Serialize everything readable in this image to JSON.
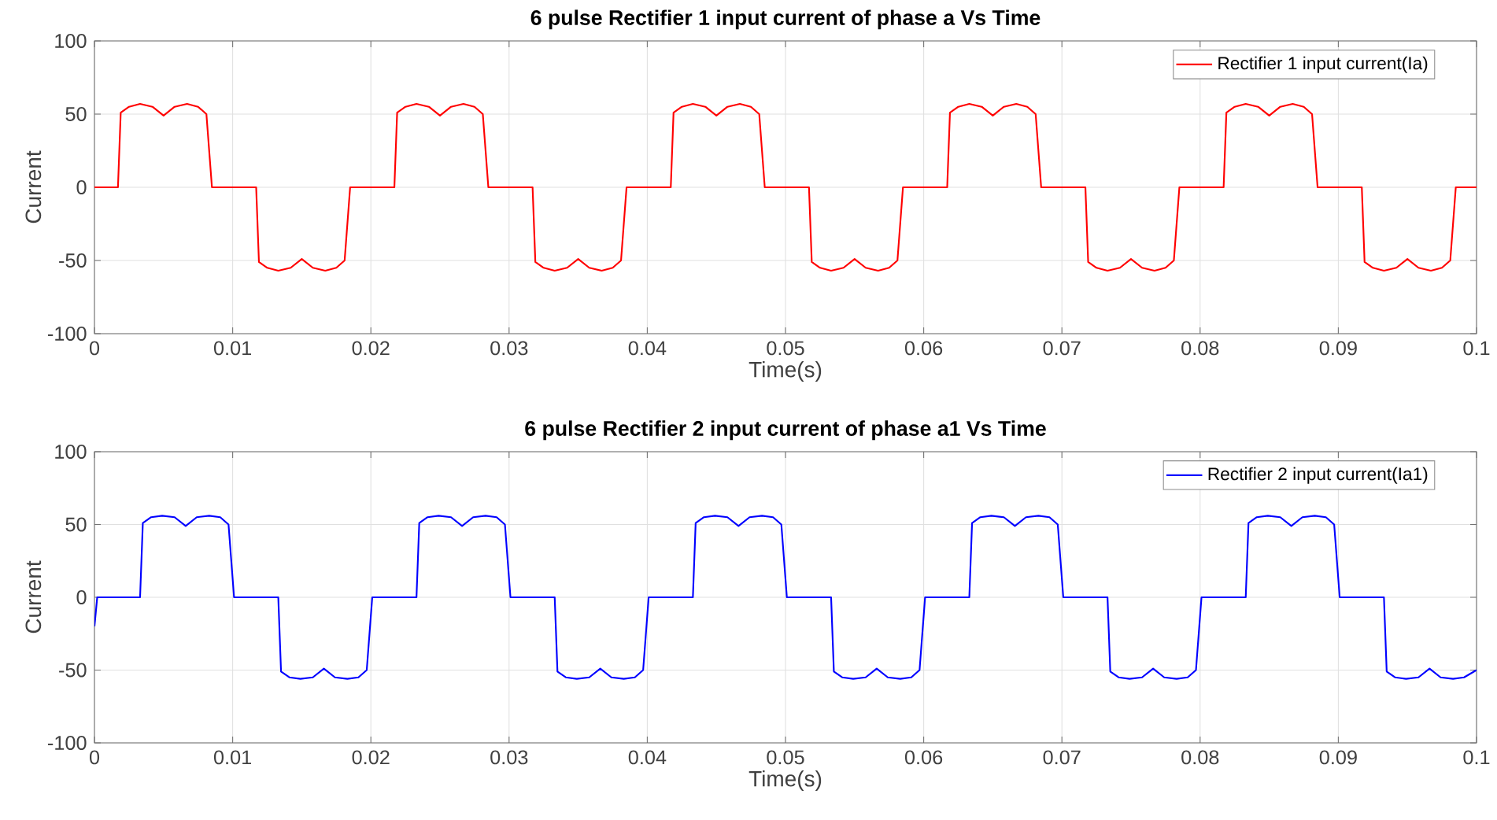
{
  "chart_data": [
    {
      "type": "line",
      "title": "6 pulse Rectifier 1 input current of phase a Vs Time",
      "xlabel": "Time(s)",
      "ylabel": "Current",
      "xlim": [
        0,
        0.1
      ],
      "ylim": [
        -100,
        100
      ],
      "xticks": [
        0,
        0.01,
        0.02,
        0.03,
        0.04,
        0.05,
        0.06,
        0.07,
        0.08,
        0.09,
        0.1
      ],
      "yticks": [
        -100,
        -50,
        0,
        50,
        100
      ],
      "grid": true,
      "legend": "top right",
      "line_style": "solid",
      "marker": "none",
      "x": [
        0,
        0.0017,
        0.0019,
        0.0025,
        0.0033,
        0.0042,
        0.005,
        0.0058,
        0.0067,
        0.0075,
        0.0081,
        0.0085,
        0.0117,
        0.0119,
        0.0125,
        0.0133,
        0.0142,
        0.015,
        0.0158,
        0.0167,
        0.0175,
        0.0181,
        0.0185,
        0.0217,
        0.0219,
        0.0225,
        0.0233,
        0.0242,
        0.025,
        0.0258,
        0.0267,
        0.0275,
        0.0281,
        0.0285,
        0.0317,
        0.0319,
        0.0325,
        0.0333,
        0.0342,
        0.035,
        0.0358,
        0.0367,
        0.0375,
        0.0381,
        0.0385,
        0.0417,
        0.0419,
        0.0425,
        0.0433,
        0.0442,
        0.045,
        0.0458,
        0.0467,
        0.0475,
        0.0481,
        0.0485,
        0.0517,
        0.0519,
        0.0525,
        0.0533,
        0.0542,
        0.055,
        0.0558,
        0.0567,
        0.0575,
        0.0581,
        0.0585,
        0.0617,
        0.0619,
        0.0625,
        0.0633,
        0.0642,
        0.065,
        0.0658,
        0.0667,
        0.0675,
        0.0681,
        0.0685,
        0.0717,
        0.0719,
        0.0725,
        0.0733,
        0.0742,
        0.075,
        0.0758,
        0.0767,
        0.0775,
        0.0781,
        0.0785,
        0.0817,
        0.0819,
        0.0825,
        0.0833,
        0.0842,
        0.085,
        0.0858,
        0.0867,
        0.0875,
        0.0881,
        0.0885,
        0.0917,
        0.0919,
        0.0925,
        0.0933,
        0.0942,
        0.095,
        0.0958,
        0.0967,
        0.0975,
        0.0981,
        0.0985,
        0.1
      ],
      "series": [
        {
          "name": "Rectifier 1 input current(Ia)",
          "color": "#ff0000",
          "values": [
            0,
            0,
            51,
            55,
            57,
            55,
            49,
            55,
            57,
            55,
            50,
            0,
            0,
            -51,
            -55,
            -57,
            -55,
            -49,
            -55,
            -57,
            -55,
            -50,
            0,
            0,
            51,
            55,
            57,
            55,
            49,
            55,
            57,
            55,
            50,
            0,
            0,
            -51,
            -55,
            -57,
            -55,
            -49,
            -55,
            -57,
            -55,
            -50,
            0,
            0,
            51,
            55,
            57,
            55,
            49,
            55,
            57,
            55,
            50,
            0,
            0,
            -51,
            -55,
            -57,
            -55,
            -49,
            -55,
            -57,
            -55,
            -50,
            0,
            0,
            51,
            55,
            57,
            55,
            49,
            55,
            57,
            55,
            50,
            0,
            0,
            -51,
            -55,
            -57,
            -55,
            -49,
            -55,
            -57,
            -55,
            -50,
            0,
            0,
            51,
            55,
            57,
            55,
            49,
            55,
            57,
            55,
            50,
            0,
            0,
            -51,
            -55,
            -57,
            -55,
            -49,
            -55,
            -57,
            -55,
            -50,
            0,
            0
          ]
        }
      ]
    },
    {
      "type": "line",
      "title": "6 pulse Rectifier 2 input current of phase a1 Vs Time",
      "xlabel": "Time(s)",
      "ylabel": "Current",
      "xlim": [
        0,
        0.1
      ],
      "ylim": [
        -100,
        100
      ],
      "xticks": [
        0,
        0.01,
        0.02,
        0.03,
        0.04,
        0.05,
        0.06,
        0.07,
        0.08,
        0.09,
        0.1
      ],
      "yticks": [
        -100,
        -50,
        0,
        50,
        100
      ],
      "grid": true,
      "legend": "top right",
      "line_style": "solid",
      "marker": "none",
      "x": [
        0,
        0.0002,
        0.0033,
        0.0035,
        0.0041,
        0.0049,
        0.0058,
        0.0066,
        0.0074,
        0.0083,
        0.0091,
        0.0097,
        0.0101,
        0.0133,
        0.0135,
        0.0141,
        0.0149,
        0.0158,
        0.0166,
        0.0174,
        0.0183,
        0.0191,
        0.0197,
        0.0201,
        0.0233,
        0.0235,
        0.0241,
        0.0249,
        0.0258,
        0.0266,
        0.0274,
        0.0283,
        0.0291,
        0.0297,
        0.0301,
        0.0333,
        0.0335,
        0.0341,
        0.0349,
        0.0358,
        0.0366,
        0.0374,
        0.0383,
        0.0391,
        0.0397,
        0.0401,
        0.0433,
        0.0435,
        0.0441,
        0.0449,
        0.0458,
        0.0466,
        0.0474,
        0.0483,
        0.0491,
        0.0497,
        0.0501,
        0.0533,
        0.0535,
        0.0541,
        0.0549,
        0.0558,
        0.0566,
        0.0574,
        0.0583,
        0.0591,
        0.0597,
        0.0601,
        0.0633,
        0.0635,
        0.0641,
        0.0649,
        0.0658,
        0.0666,
        0.0674,
        0.0683,
        0.0691,
        0.0697,
        0.0701,
        0.0733,
        0.0735,
        0.0741,
        0.0749,
        0.0758,
        0.0766,
        0.0774,
        0.0783,
        0.0791,
        0.0797,
        0.0801,
        0.0833,
        0.0835,
        0.0841,
        0.0849,
        0.0858,
        0.0866,
        0.0874,
        0.0883,
        0.0891,
        0.0897,
        0.0901,
        0.0933,
        0.0935,
        0.0941,
        0.0949,
        0.0958,
        0.0966,
        0.0974,
        0.0983,
        0.0991,
        0.1
      ],
      "series": [
        {
          "name": "Rectifier 2 input current(Ia1)",
          "color": "#0000ff",
          "values": [
            -20,
            0,
            0,
            51,
            55,
            56,
            55,
            49,
            55,
            56,
            55,
            50,
            0,
            0,
            -51,
            -55,
            -56,
            -55,
            -49,
            -55,
            -56,
            -55,
            -50,
            0,
            0,
            51,
            55,
            56,
            55,
            49,
            55,
            56,
            55,
            50,
            0,
            0,
            -51,
            -55,
            -56,
            -55,
            -49,
            -55,
            -56,
            -55,
            -50,
            0,
            0,
            51,
            55,
            56,
            55,
            49,
            55,
            56,
            55,
            50,
            0,
            0,
            -51,
            -55,
            -56,
            -55,
            -49,
            -55,
            -56,
            -55,
            -50,
            0,
            0,
            51,
            55,
            56,
            55,
            49,
            55,
            56,
            55,
            50,
            0,
            0,
            -51,
            -55,
            -56,
            -55,
            -49,
            -55,
            -56,
            -55,
            -50,
            0,
            0,
            51,
            55,
            56,
            55,
            49,
            55,
            56,
            55,
            50,
            0,
            0,
            -51,
            -55,
            -56,
            -55,
            -49,
            -55,
            -56,
            -55,
            -50
          ]
        }
      ]
    }
  ]
}
